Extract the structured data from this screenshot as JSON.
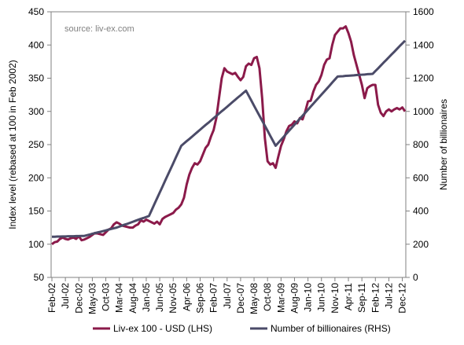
{
  "chart_data": {
    "type": "line",
    "annotation": "source: liv-ex.com",
    "y_label": "Index level (rebased at 100 in Feb 2002)",
    "y2_label": "Number of billionaires",
    "ylim": [
      50,
      450
    ],
    "yticks": [
      50,
      100,
      150,
      200,
      250,
      300,
      350,
      400,
      450
    ],
    "y2lim": [
      0,
      1600
    ],
    "y2ticks": [
      0,
      200,
      400,
      600,
      800,
      1000,
      1200,
      1400,
      1600
    ],
    "grid": false,
    "legend": "bottom",
    "categories": [
      "Feb-02",
      null,
      null,
      null,
      null,
      "Jul-02",
      null,
      null,
      null,
      null,
      "Dec-02",
      null,
      null,
      null,
      null,
      "May-03",
      null,
      null,
      null,
      null,
      "Oct-03",
      null,
      null,
      null,
      null,
      "Mar-04",
      null,
      null,
      null,
      null,
      "Aug-04",
      null,
      null,
      null,
      null,
      "Jan-05",
      null,
      null,
      null,
      null,
      "Jun-05",
      null,
      null,
      null,
      null,
      "Nov-05",
      null,
      null,
      null,
      null,
      "Apr-06",
      null,
      null,
      null,
      null,
      "Sep-06",
      null,
      null,
      null,
      null,
      "Feb-07",
      null,
      null,
      null,
      null,
      "Jul-07",
      null,
      null,
      null,
      null,
      "Dec-07",
      null,
      null,
      null,
      null,
      "May-08",
      null,
      null,
      null,
      null,
      "Oct-08",
      null,
      null,
      null,
      null,
      "Mar-09",
      null,
      null,
      null,
      null,
      "Aug-09",
      null,
      null,
      null,
      null,
      "Jan-10",
      null,
      null,
      null,
      null,
      "Jun-10",
      null,
      null,
      null,
      null,
      "Nov-10",
      null,
      null,
      null,
      null,
      "Apr-11",
      null,
      null,
      null,
      null,
      "Sep-11",
      null,
      null,
      null,
      null,
      "Feb-12",
      null,
      null,
      null,
      null,
      "Jul-12",
      null,
      null,
      null,
      null,
      "Dec-12",
      null
    ],
    "series": [
      {
        "name": "Liv-ex 100 - USD (LHS)",
        "color": "#8b1a4a",
        "axis": "y",
        "values": [
          100,
          103,
          104,
          108,
          110,
          108,
          107,
          109,
          110,
          108,
          112,
          106,
          107,
          109,
          111,
          114,
          117,
          116,
          115,
          114,
          118,
          122,
          124,
          130,
          133,
          131,
          128,
          127,
          126,
          125,
          125,
          128,
          130,
          136,
          134,
          137,
          135,
          133,
          131,
          134,
          130,
          138,
          141,
          143,
          145,
          147,
          152,
          155,
          160,
          170,
          190,
          205,
          215,
          222,
          220,
          225,
          235,
          245,
          250,
          262,
          272,
          290,
          320,
          350,
          365,
          360,
          358,
          356,
          358,
          352,
          347,
          352,
          368,
          372,
          370,
          380,
          382,
          365,
          320,
          260,
          225,
          220,
          222,
          215,
          232,
          248,
          258,
          270,
          278,
          280,
          285,
          282,
          290,
          288,
          300,
          315,
          316,
          330,
          340,
          345,
          355,
          370,
          378,
          380,
          400,
          415,
          420,
          425,
          425,
          428,
          418,
          405,
          385,
          370,
          355,
          340,
          320,
          335,
          338,
          340,
          340,
          310,
          298,
          293,
          300,
          303,
          300,
          303,
          305,
          303,
          306,
          300
        ]
      },
      {
        "name": "Number of billionaires (RHS)",
        "color": "#4b4b68",
        "axis": "y2",
        "values": [
          245,
          245,
          246,
          246,
          247,
          247,
          248,
          248,
          248,
          249,
          249,
          250,
          250,
          254,
          258,
          263,
          267,
          271,
          275,
          279,
          283,
          288,
          292,
          296,
          300,
          306,
          312,
          318,
          323,
          329,
          335,
          341,
          347,
          353,
          358,
          364,
          370,
          405,
          441,
          476,
          511,
          546,
          582,
          617,
          652,
          687,
          723,
          758,
          793,
          807,
          821,
          834,
          848,
          862,
          876,
          890,
          904,
          918,
          931,
          945,
          959,
          973,
          987,
          1001,
          1014,
          1028,
          1042,
          1056,
          1070,
          1084,
          1097,
          1111,
          1125,
          1095,
          1065,
          1034,
          1004,
          974,
          944,
          914,
          884,
          853,
          823,
          793,
          811,
          829,
          847,
          866,
          884,
          902,
          920,
          938,
          956,
          974,
          992,
          1010,
          1029,
          1047,
          1065,
          1083,
          1101,
          1119,
          1137,
          1155,
          1174,
          1192,
          1210,
          1211,
          1212,
          1214,
          1215,
          1216,
          1217,
          1219,
          1220,
          1221,
          1222,
          1224,
          1225,
          1226,
          1243,
          1259,
          1276,
          1293,
          1309,
          1326,
          1343,
          1359,
          1376,
          1393,
          1409,
          1426
        ]
      }
    ]
  }
}
